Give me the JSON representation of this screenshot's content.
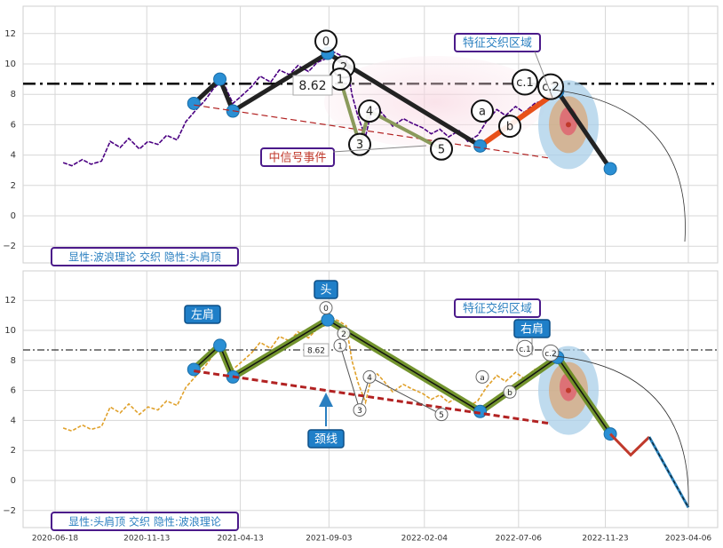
{
  "chart_data": [
    {
      "type": "line",
      "panel": "top",
      "ylim": [
        -3,
        14
      ],
      "yticks": [
        -2,
        0,
        2,
        4,
        6,
        8,
        10,
        12
      ],
      "grid": true,
      "hline": {
        "y": 8.7,
        "style": "dash-dot"
      },
      "series": [
        {
          "role": "price",
          "color": "#4b0082",
          "x": [
            "2020-07-01",
            "2020-07-15",
            "2020-08-01",
            "2020-08-15",
            "2020-09-01",
            "2020-09-15",
            "2020-10-01",
            "2020-10-15",
            "2020-11-01",
            "2020-11-15",
            "2020-12-01",
            "2020-12-15",
            "2021-01-01",
            "2021-01-15",
            "2021-02-01",
            "2021-02-15",
            "2021-03-01",
            "2021-03-15",
            "2021-04-01",
            "2021-04-15",
            "2021-05-01",
            "2021-05-15",
            "2021-06-01",
            "2021-06-15",
            "2021-07-01",
            "2021-07-15",
            "2021-08-01",
            "2021-08-15",
            "2021-09-01",
            "2021-09-10",
            "2021-09-20",
            "2021-10-01",
            "2021-10-10",
            "2021-10-20",
            "2021-11-01",
            "2021-11-10",
            "2021-11-20",
            "2021-12-01",
            "2021-12-15",
            "2022-01-01",
            "2022-01-15",
            "2022-02-01",
            "2022-02-15",
            "2022-03-01",
            "2022-03-15",
            "2022-04-01",
            "2022-04-15",
            "2022-05-01",
            "2022-05-15",
            "2022-06-01",
            "2022-06-15",
            "2022-07-01",
            "2022-07-15",
            "2022-08-01",
            "2022-08-15",
            "2022-09-01"
          ],
          "y": [
            3.5,
            3.3,
            3.7,
            3.4,
            3.6,
            4.9,
            4.5,
            5.1,
            4.4,
            4.9,
            4.7,
            5.3,
            5.0,
            6.2,
            7.0,
            7.6,
            8.4,
            8.9,
            7.4,
            7.9,
            8.5,
            9.2,
            8.8,
            9.6,
            9.3,
            9.9,
            9.5,
            10.1,
            10.4,
            10.8,
            10.6,
            10.3,
            8.0,
            6.5,
            5.2,
            6.8,
            7.1,
            6.6,
            5.9,
            6.4,
            6.1,
            5.8,
            5.4,
            5.7,
            5.2,
            5.6,
            4.9,
            5.3,
            6.2,
            7.0,
            6.6,
            7.2,
            6.8,
            7.4,
            7.6,
            8.2
          ]
        },
        {
          "role": "head-and-shoulders-path",
          "color": "#222222",
          "x": [
            "2021-01-28",
            "2021-03-11",
            "2021-04-01",
            "2021-09-01",
            "2022-05-05",
            "2022-09-07",
            "2022-12-01"
          ],
          "y": [
            7.4,
            9.0,
            6.9,
            10.7,
            4.6,
            8.2,
            3.1
          ]
        },
        {
          "role": "neckline",
          "color": "#b22222",
          "x": [
            "2021-01-28",
            "2022-08-25"
          ],
          "y": [
            7.3,
            3.8
          ]
        }
      ],
      "annotations": [
        "0",
        "2",
        "1",
        "3",
        "4",
        "5",
        "a",
        "b",
        "c.1",
        "c.2",
        "8.62"
      ],
      "labels": [
        "特征交织区域",
        "中信号事件"
      ],
      "caption": "显性:波浪理论 交织 隐性:头肩顶"
    },
    {
      "type": "line",
      "panel": "bottom",
      "ylim": [
        -3,
        14
      ],
      "yticks": [
        -2,
        0,
        2,
        4,
        6,
        8,
        10,
        12
      ],
      "xticks": [
        "2020-06-18",
        "2020-11-13",
        "2021-04-13",
        "2021-09-03",
        "2022-02-04",
        "2022-07-06",
        "2022-11-23",
        "2023-04-06"
      ],
      "grid": true,
      "hline": {
        "y": 8.7,
        "style": "dash-dot"
      },
      "series": [
        {
          "role": "price",
          "color": "#e0a12b",
          "x": [
            "2020-07-01",
            "2020-07-15",
            "2020-08-01",
            "2020-08-15",
            "2020-09-01",
            "2020-09-15",
            "2020-10-01",
            "2020-10-15",
            "2020-11-01",
            "2020-11-15",
            "2020-12-01",
            "2020-12-15",
            "2021-01-01",
            "2021-01-15",
            "2021-02-01",
            "2021-02-15",
            "2021-03-01",
            "2021-03-15",
            "2021-04-01",
            "2021-04-15",
            "2021-05-01",
            "2021-05-15",
            "2021-06-01",
            "2021-06-15",
            "2021-07-01",
            "2021-07-15",
            "2021-08-01",
            "2021-08-15",
            "2021-09-01",
            "2021-09-10",
            "2021-09-20",
            "2021-10-01",
            "2021-10-10",
            "2021-10-20",
            "2021-11-01",
            "2021-11-10",
            "2021-11-20",
            "2021-12-01",
            "2021-12-15",
            "2022-01-01",
            "2022-01-15",
            "2022-02-01",
            "2022-02-15",
            "2022-03-01",
            "2022-03-15",
            "2022-04-01",
            "2022-04-15",
            "2022-05-01",
            "2022-05-15",
            "2022-06-01",
            "2022-06-15",
            "2022-07-01",
            "2022-07-15",
            "2022-08-01",
            "2022-08-15",
            "2022-09-01"
          ],
          "y": [
            3.5,
            3.3,
            3.7,
            3.4,
            3.6,
            4.9,
            4.5,
            5.1,
            4.4,
            4.9,
            4.7,
            5.3,
            5.0,
            6.2,
            7.0,
            7.6,
            8.4,
            8.9,
            7.4,
            7.9,
            8.5,
            9.2,
            8.8,
            9.6,
            9.3,
            9.9,
            9.5,
            10.1,
            10.4,
            10.8,
            10.6,
            10.3,
            8.0,
            6.5,
            5.2,
            6.8,
            7.1,
            6.6,
            5.9,
            6.4,
            6.1,
            5.8,
            5.4,
            5.7,
            5.2,
            5.6,
            4.9,
            5.3,
            6.2,
            7.0,
            6.6,
            7.2,
            6.8,
            7.4,
            7.6,
            8.2
          ]
        },
        {
          "role": "head-and-shoulders-path",
          "color": "#6b8e23",
          "x": [
            "2021-01-28",
            "2021-03-11",
            "2021-04-01",
            "2021-09-01",
            "2022-05-05",
            "2022-09-07",
            "2022-12-01"
          ],
          "y": [
            7.4,
            9.0,
            6.9,
            10.7,
            4.6,
            8.2,
            3.1
          ]
        },
        {
          "role": "projection",
          "color": "#c0392b",
          "x": [
            "2022-12-01",
            "2023-01-03",
            "2023-02-02"
          ],
          "y": [
            3.1,
            1.7,
            2.9
          ]
        },
        {
          "role": "projection",
          "color": "#2980b9",
          "x": [
            "2023-02-02",
            "2023-04-06"
          ],
          "y": [
            2.9,
            -1.8
          ]
        },
        {
          "role": "neckline",
          "color": "#b22222",
          "x": [
            "2021-01-28",
            "2022-08-25"
          ],
          "y": [
            7.3,
            3.8
          ]
        }
      ],
      "annotations": [
        "0",
        "2",
        "1",
        "3",
        "4",
        "5",
        "a",
        "b",
        "c.1",
        "c.2",
        "8.62"
      ],
      "labels": [
        "头",
        "左肩",
        "右肩",
        "颈线",
        "特征交织区域"
      ],
      "caption": "显性:头肩顶 交织 隐性:波浪理论"
    }
  ]
}
